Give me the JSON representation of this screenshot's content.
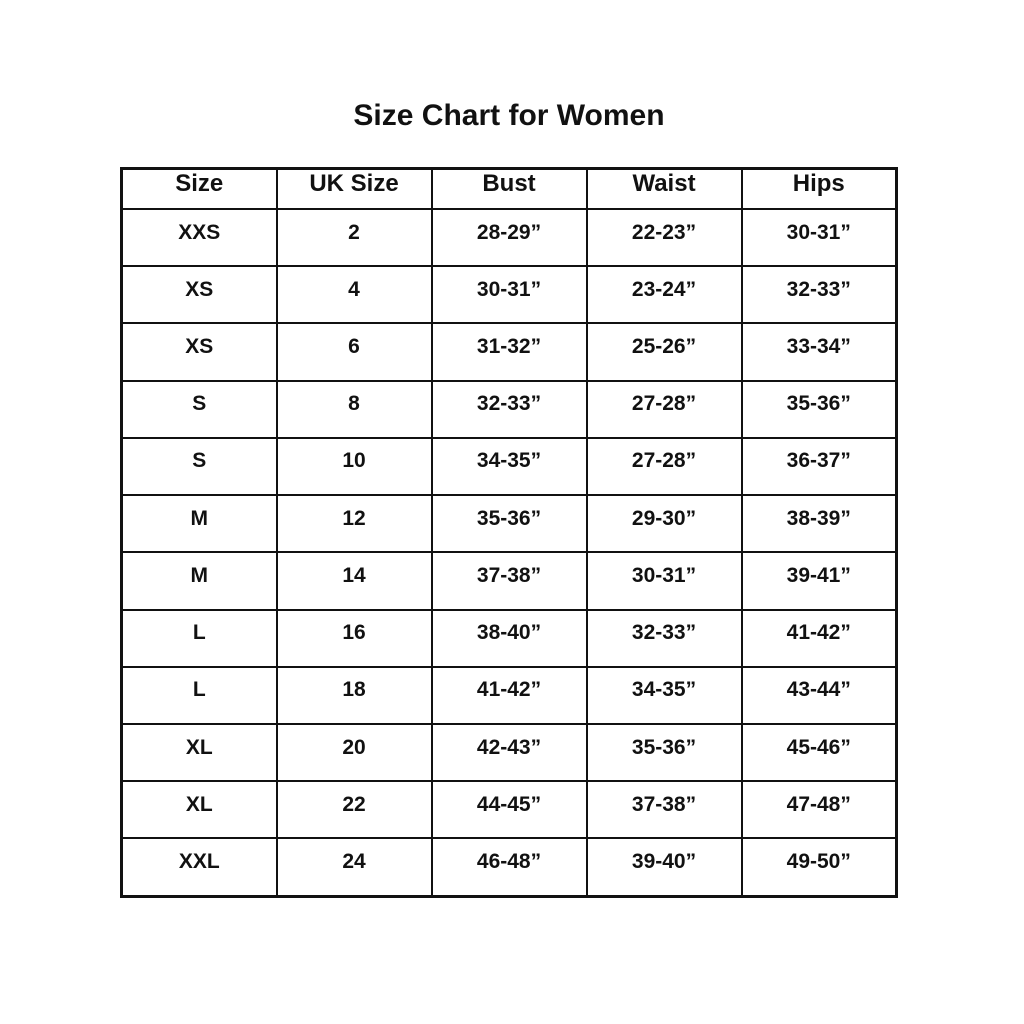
{
  "title": "Size Chart for Women",
  "table": {
    "headers": [
      "Size",
      "UK Size",
      "Bust",
      "Waist",
      "Hips"
    ],
    "rows": [
      [
        "XXS",
        "2",
        "28-29”",
        "22-23”",
        "30-31”"
      ],
      [
        "XS",
        "4",
        "30-31”",
        "23-24”",
        "32-33”"
      ],
      [
        "XS",
        "6",
        "31-32”",
        "25-26”",
        "33-34”"
      ],
      [
        "S",
        "8",
        "32-33”",
        "27-28”",
        "35-36”"
      ],
      [
        "S",
        "10",
        "34-35”",
        "27-28”",
        "36-37”"
      ],
      [
        "M",
        "12",
        "35-36”",
        "29-30”",
        "38-39”"
      ],
      [
        "M",
        "14",
        "37-38”",
        "30-31”",
        "39-41”"
      ],
      [
        "L",
        "16",
        "38-40”",
        "32-33”",
        "41-42”"
      ],
      [
        "L",
        "18",
        "41-42”",
        "34-35”",
        "43-44”"
      ],
      [
        "XL",
        "20",
        "42-43”",
        "35-36”",
        "45-46”"
      ],
      [
        "XL",
        "22",
        "44-45”",
        "37-38”",
        "47-48”"
      ],
      [
        "XXL",
        "24",
        "46-48”",
        "39-40”",
        "49-50”"
      ]
    ]
  },
  "chart_data": {
    "type": "table",
    "title": "Size Chart for Women",
    "columns": [
      "Size",
      "UK Size",
      "Bust",
      "Waist",
      "Hips"
    ],
    "rows": [
      [
        "XXS",
        "2",
        "28-29”",
        "22-23”",
        "30-31”"
      ],
      [
        "XS",
        "4",
        "30-31”",
        "23-24”",
        "32-33”"
      ],
      [
        "XS",
        "6",
        "31-32”",
        "25-26”",
        "33-34”"
      ],
      [
        "S",
        "8",
        "32-33”",
        "27-28”",
        "35-36”"
      ],
      [
        "S",
        "10",
        "34-35”",
        "27-28”",
        "36-37”"
      ],
      [
        "M",
        "12",
        "35-36”",
        "29-30”",
        "38-39”"
      ],
      [
        "M",
        "14",
        "37-38”",
        "30-31”",
        "39-41”"
      ],
      [
        "L",
        "16",
        "38-40”",
        "32-33”",
        "41-42”"
      ],
      [
        "L",
        "18",
        "41-42”",
        "34-35”",
        "43-44”"
      ],
      [
        "XL",
        "20",
        "42-43”",
        "35-36”",
        "45-46”"
      ],
      [
        "XL",
        "22",
        "44-45”",
        "37-38”",
        "47-48”"
      ],
      [
        "XXL",
        "24",
        "46-48”",
        "39-40”",
        "49-50”"
      ]
    ]
  },
  "colors": {
    "background": "#ffffff",
    "text": "#111111",
    "border": "#111111"
  }
}
